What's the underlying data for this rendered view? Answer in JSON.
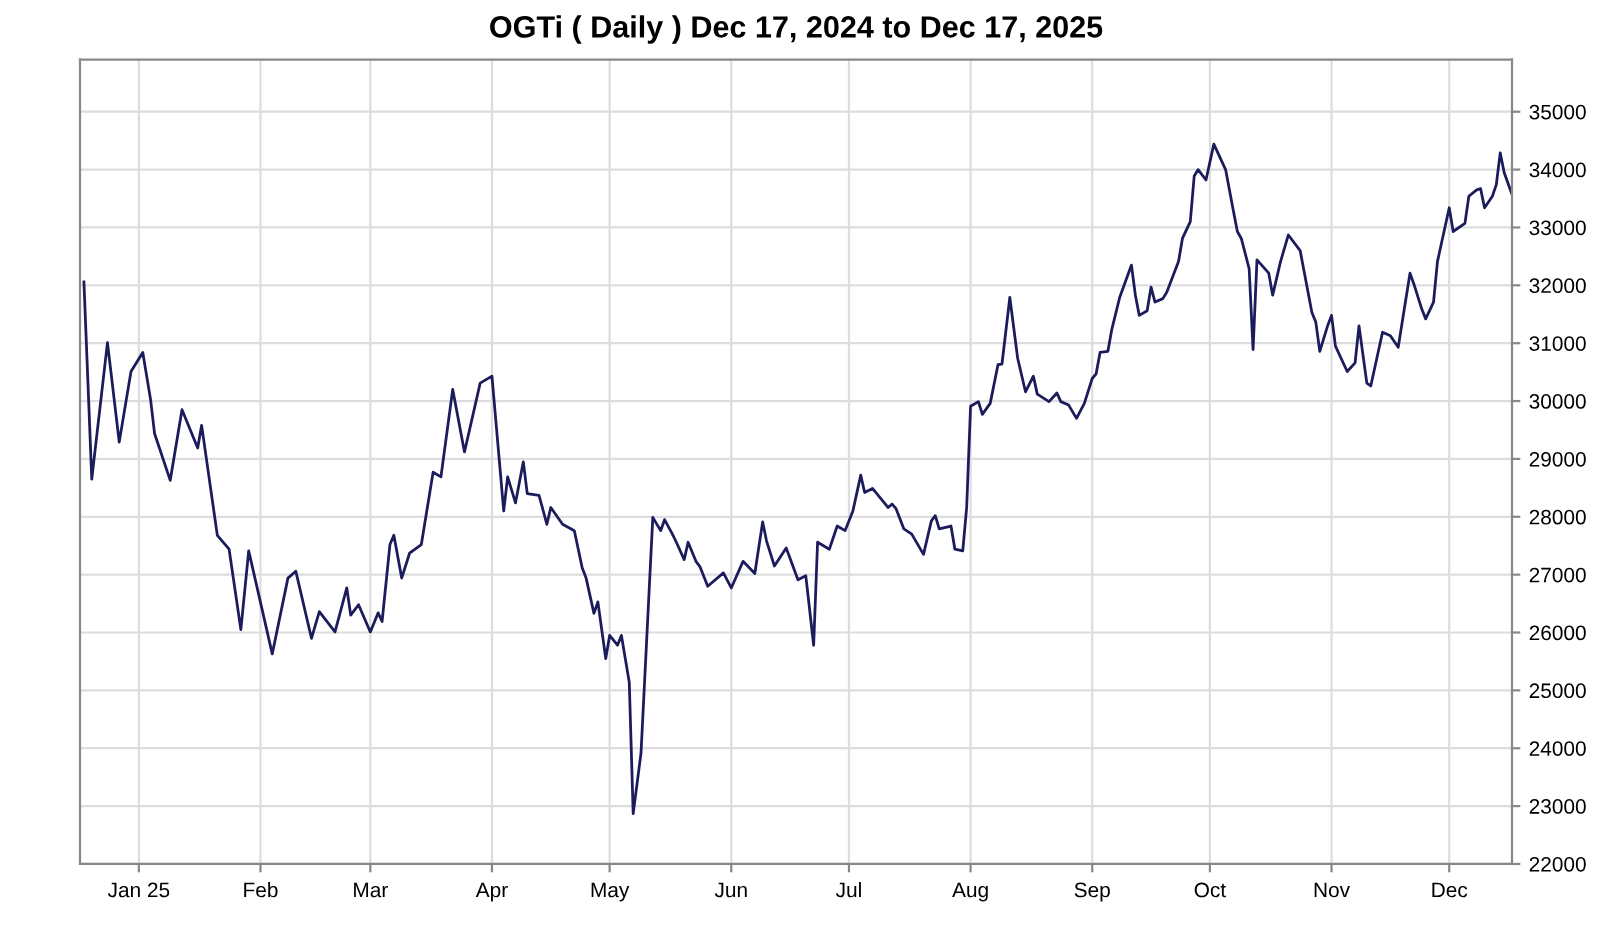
{
  "chart_data": {
    "type": "line",
    "title": "OGTi ( Daily ) Dec 17, 2024 to Dec 17, 2025",
    "xlim": [
      "2024-12-17",
      "2025-12-17"
    ],
    "xticks": [
      {
        "value": "2025-01-01",
        "label": "Jan 25"
      },
      {
        "value": "2025-02-01",
        "label": "Feb"
      },
      {
        "value": "2025-03-01",
        "label": "Mar"
      },
      {
        "value": "2025-04-01",
        "label": "Apr"
      },
      {
        "value": "2025-05-01",
        "label": "May"
      },
      {
        "value": "2025-06-01",
        "label": "Jun"
      },
      {
        "value": "2025-07-01",
        "label": "Jul"
      },
      {
        "value": "2025-08-01",
        "label": "Aug"
      },
      {
        "value": "2025-09-01",
        "label": "Sep"
      },
      {
        "value": "2025-10-01",
        "label": "Oct"
      },
      {
        "value": "2025-11-01",
        "label": "Nov"
      },
      {
        "value": "2025-12-01",
        "label": "Dec"
      }
    ],
    "ylim": [
      22000,
      35900
    ],
    "yticks": [
      22000,
      23000,
      24000,
      25000,
      26000,
      27000,
      28000,
      29000,
      30000,
      31000,
      32000,
      33000,
      34000,
      35000
    ],
    "grid": true,
    "marker": "none",
    "line_style": "solid",
    "series": [
      {
        "color": "#1c1c5c",
        "x": [
          "2024-12-18",
          "2024-12-20",
          "2024-12-24",
          "2024-12-27",
          "2024-12-30",
          "2025-01-02",
          "2025-01-04",
          "2025-01-05",
          "2025-01-09",
          "2025-01-12",
          "2025-01-16",
          "2025-01-17",
          "2025-01-21",
          "2025-01-24",
          "2025-01-27",
          "2025-01-29",
          "2025-02-04",
          "2025-02-08",
          "2025-02-10",
          "2025-02-14",
          "2025-02-16",
          "2025-02-20",
          "2025-02-23",
          "2025-02-24",
          "2025-02-26",
          "2025-03-01",
          "2025-03-03",
          "2025-03-04",
          "2025-03-06",
          "2025-03-07",
          "2025-03-09",
          "2025-03-11",
          "2025-03-14",
          "2025-03-17",
          "2025-03-19",
          "2025-03-22",
          "2025-03-25",
          "2025-03-29",
          "2025-04-01",
          "2025-04-04",
          "2025-04-05",
          "2025-04-07",
          "2025-04-09",
          "2025-04-10",
          "2025-04-13",
          "2025-04-15",
          "2025-04-16",
          "2025-04-19",
          "2025-04-22",
          "2025-04-24",
          "2025-04-25",
          "2025-04-27",
          "2025-04-28",
          "2025-04-30",
          "2025-05-01",
          "2025-05-03",
          "2025-05-04",
          "2025-05-06",
          "2025-05-07",
          "2025-05-09",
          "2025-05-12",
          "2025-05-14",
          "2025-05-15",
          "2025-05-17",
          "2025-05-18",
          "2025-05-20",
          "2025-05-21",
          "2025-05-23",
          "2025-05-24",
          "2025-05-26",
          "2025-05-30",
          "2025-06-01",
          "2025-06-04",
          "2025-06-07",
          "2025-06-09",
          "2025-06-10",
          "2025-06-12",
          "2025-06-15",
          "2025-06-18",
          "2025-06-20",
          "2025-06-22",
          "2025-06-23",
          "2025-06-26",
          "2025-06-28",
          "2025-06-30",
          "2025-07-02",
          "2025-07-04",
          "2025-07-05",
          "2025-07-07",
          "2025-07-11",
          "2025-07-12",
          "2025-07-13",
          "2025-07-15",
          "2025-07-17",
          "2025-07-20",
          "2025-07-22",
          "2025-07-23",
          "2025-07-24",
          "2025-07-27",
          "2025-07-28",
          "2025-07-30",
          "2025-07-31",
          "2025-08-01",
          "2025-08-03",
          "2025-08-04",
          "2025-08-06",
          "2025-08-08",
          "2025-08-09",
          "2025-08-11",
          "2025-08-13",
          "2025-08-15",
          "2025-08-17",
          "2025-08-18",
          "2025-08-21",
          "2025-08-23",
          "2025-08-24",
          "2025-08-26",
          "2025-08-28",
          "2025-08-30",
          "2025-09-01",
          "2025-09-02",
          "2025-09-03",
          "2025-09-05",
          "2025-09-06",
          "2025-09-08",
          "2025-09-11",
          "2025-09-12",
          "2025-09-13",
          "2025-09-15",
          "2025-09-16",
          "2025-09-17",
          "2025-09-19",
          "2025-09-20",
          "2025-09-23",
          "2025-09-24",
          "2025-09-26",
          "2025-09-27",
          "2025-09-28",
          "2025-09-30",
          "2025-10-02",
          "2025-10-05",
          "2025-10-07",
          "2025-10-08",
          "2025-10-09",
          "2025-10-11",
          "2025-10-12",
          "2025-10-13",
          "2025-10-16",
          "2025-10-17",
          "2025-10-19",
          "2025-10-21",
          "2025-10-24",
          "2025-10-27",
          "2025-10-28",
          "2025-10-29",
          "2025-10-31",
          "2025-11-01",
          "2025-11-02",
          "2025-11-05",
          "2025-11-07",
          "2025-11-08",
          "2025-11-10",
          "2025-11-11",
          "2025-11-14",
          "2025-11-16",
          "2025-11-18",
          "2025-11-21",
          "2025-11-22",
          "2025-11-24",
          "2025-11-25",
          "2025-11-27",
          "2025-11-28",
          "2025-12-01",
          "2025-12-02",
          "2025-12-05",
          "2025-12-06",
          "2025-12-08",
          "2025-12-09",
          "2025-12-10",
          "2025-12-12",
          "2025-12-13",
          "2025-12-14",
          "2025-12-15",
          "2025-12-17"
        ],
        "values": [
          32060,
          28650,
          31010,
          29290,
          30510,
          30840,
          30020,
          29440,
          28630,
          29850,
          29190,
          29580,
          27680,
          27440,
          26050,
          27410,
          25630,
          26940,
          27060,
          25900,
          26360,
          26010,
          26770,
          26300,
          26480,
          26010,
          26340,
          26190,
          27520,
          27680,
          26940,
          27370,
          27520,
          28770,
          28690,
          30200,
          29120,
          30310,
          30430,
          28100,
          28690,
          28240,
          28950,
          28400,
          28370,
          27870,
          28160,
          27870,
          27760,
          27120,
          26940,
          26330,
          26530,
          25550,
          25950,
          25780,
          25950,
          25140,
          22870,
          23920,
          27990,
          27760,
          27950,
          27700,
          27560,
          27260,
          27560,
          27230,
          27140,
          26800,
          27030,
          26770,
          27230,
          27020,
          27910,
          27580,
          27150,
          27460,
          26910,
          26980,
          25780,
          27560,
          27440,
          27840,
          27760,
          28100,
          28720,
          28420,
          28490,
          28160,
          28220,
          28140,
          27790,
          27700,
          27350,
          27930,
          28020,
          27790,
          27840,
          27440,
          27410,
          28160,
          29910,
          29990,
          29770,
          29960,
          30630,
          30640,
          31790,
          30740,
          30160,
          30430,
          30120,
          29990,
          30140,
          29990,
          29930,
          29700,
          29960,
          30390,
          30470,
          30840,
          30860,
          31240,
          31790,
          32350,
          31830,
          31480,
          31560,
          31970,
          31710,
          31770,
          31880,
          32410,
          32810,
          33100,
          33890,
          34000,
          33820,
          34440,
          34000,
          33280,
          32930,
          32810,
          32290,
          30890,
          32440,
          32210,
          31830,
          32410,
          32870,
          32600,
          31530,
          31360,
          30860,
          31300,
          31480,
          30950,
          30510,
          30660,
          31300,
          30310,
          30260,
          31190,
          31130,
          30930,
          32210,
          32020,
          31590,
          31420,
          31710,
          32410,
          33340,
          32930,
          33070,
          33540,
          33650,
          33670,
          33340,
          33540,
          33740,
          34290,
          33950,
          33570
        ]
      }
    ]
  }
}
